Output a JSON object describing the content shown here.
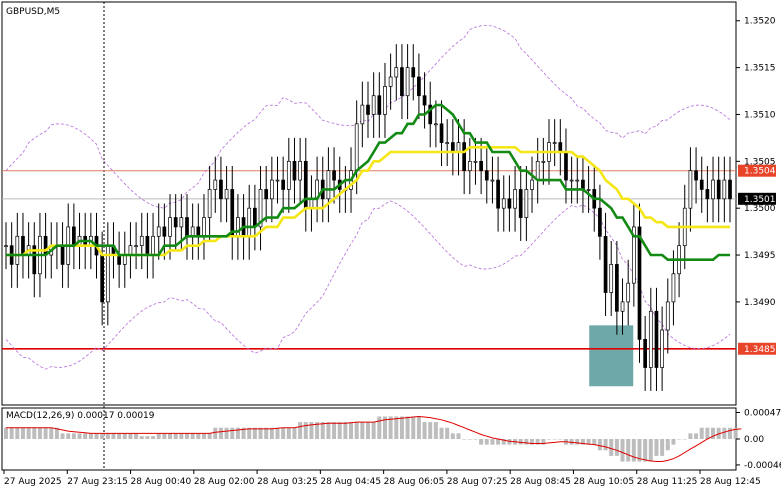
{
  "window": {
    "symbol_label": "GBPUSD,M5"
  },
  "chart_data": [
    {
      "type": "candlestick",
      "title": "GBPUSD,M5",
      "ylim": [
        1.3479,
        1.3522
      ],
      "y_ticks": [
        "1.3520",
        "1.3515",
        "1.3510",
        "1.3505",
        "1.3500",
        "1.3495",
        "1.3490"
      ],
      "x_ticks": [
        "27 Aug 2025",
        "27 Aug 23:15",
        "28 Aug 00:40",
        "28 Aug 02:00",
        "28 Aug 03:25",
        "28 Aug 04:45",
        "28 Aug 06:05",
        "28 Aug 07:25",
        "28 Aug 08:45",
        "28 Aug 10:05",
        "28 Aug 11:25",
        "28 Aug 12:45"
      ],
      "price_tags": [
        {
          "value": "1.3504",
          "color": "#e8442a"
        },
        {
          "value": "1.3501",
          "color": "#000000"
        },
        {
          "value": "1.3485",
          "color": "#e8442a"
        }
      ],
      "horizontal_levels": [
        {
          "value": 1.3504,
          "color": "#e07a5f"
        },
        {
          "value": 1.3485,
          "color": "#e00000"
        }
      ],
      "highlight_zone": {
        "x_from": 0.8,
        "x_to": 0.86,
        "y_from": 1.3481,
        "y_to": 1.34875,
        "color": "#5f9ea0"
      },
      "grid": false,
      "legend": "none",
      "close": [
        1.3496,
        1.3494,
        1.3497,
        1.3495,
        1.3496,
        1.3493,
        1.3497,
        1.3495,
        1.3496,
        1.3496,
        1.3494,
        1.3498,
        1.3496,
        1.3497,
        1.3496,
        1.3497,
        1.3495,
        1.349,
        1.3496,
        1.3495,
        1.3494,
        1.3495,
        1.3496,
        1.3496,
        1.3497,
        1.3495,
        1.3497,
        1.3498,
        1.3497,
        1.3499,
        1.3498,
        1.3499,
        1.3497,
        1.3498,
        1.3497,
        1.3499,
        1.3502,
        1.3503,
        1.3501,
        1.3502,
        1.3497,
        1.3499,
        1.3497,
        1.35,
        1.3498,
        1.3502,
        1.3501,
        1.3503,
        1.3503,
        1.3502,
        1.3505,
        1.3503,
        1.3505,
        1.35,
        1.3501,
        1.3503,
        1.3501,
        1.3504,
        1.3503,
        1.3502,
        1.3502,
        1.3504,
        1.3509,
        1.3511,
        1.351,
        1.3512,
        1.351,
        1.3513,
        1.3514,
        1.3515,
        1.3512,
        1.3515,
        1.3514,
        1.3512,
        1.3511,
        1.3509,
        1.3509,
        1.3507,
        1.3507,
        1.3506,
        1.3507,
        1.3504,
        1.3505,
        1.3505,
        1.3504,
        1.3503,
        1.3503,
        1.35,
        1.3501,
        1.35,
        1.3502,
        1.3499,
        1.3502,
        1.3503,
        1.3505,
        1.3505,
        1.3507,
        1.3507,
        1.3506,
        1.3503,
        1.3503,
        1.3503,
        1.3502,
        1.3502,
        1.35,
        1.3497,
        1.3491,
        1.3494,
        1.3489,
        1.349,
        1.3492,
        1.3498,
        1.3486,
        1.3483,
        1.3489,
        1.3483,
        1.3487,
        1.349,
        1.3493,
        1.3496,
        1.35,
        1.3504,
        1.3503,
        1.3502,
        1.3501,
        1.3503,
        1.3501,
        1.3503,
        1.3501
      ],
      "ma_yellow": [
        1.3495,
        1.3495,
        1.3495,
        1.3495,
        1.34955,
        1.34955,
        1.34955,
        1.34955,
        1.3496,
        1.3496,
        1.3496,
        1.3496,
        1.3496,
        1.3496,
        1.3496,
        1.3496,
        1.3496,
        1.3495,
        1.3495,
        1.3495,
        1.3495,
        1.3495,
        1.3495,
        1.3495,
        1.3495,
        1.3495,
        1.3495,
        1.3495,
        1.3495,
        1.34955,
        1.34955,
        1.34955,
        1.3496,
        1.3496,
        1.3496,
        1.34965,
        1.34965,
        1.34965,
        1.3497,
        1.3497,
        1.3497,
        1.3497,
        1.3497,
        1.3497,
        1.3497,
        1.34975,
        1.3498,
        1.3498,
        1.3498,
        1.3499,
        1.3499,
        1.3499,
        1.34995,
        1.35,
        1.35,
        1.35,
        1.35,
        1.35005,
        1.3501,
        1.35015,
        1.3502,
        1.35025,
        1.3503,
        1.3504,
        1.3504,
        1.3505,
        1.3505,
        1.35055,
        1.3506,
        1.3506,
        1.3506,
        1.3506,
        1.3506,
        1.3506,
        1.3506,
        1.3506,
        1.3506,
        1.3506,
        1.3506,
        1.3506,
        1.3506,
        1.3506,
        1.35065,
        1.35065,
        1.35065,
        1.35065,
        1.35065,
        1.35065,
        1.35065,
        1.35065,
        1.35065,
        1.3506,
        1.3506,
        1.3506,
        1.3506,
        1.3506,
        1.3506,
        1.3506,
        1.3506,
        1.3506,
        1.3506,
        1.35055,
        1.35055,
        1.3505,
        1.35045,
        1.3504,
        1.3503,
        1.35025,
        1.3502,
        1.3501,
        1.3501,
        1.35005,
        1.35,
        1.3499,
        1.3499,
        1.34985,
        1.34985,
        1.3498,
        1.3498,
        1.3498,
        1.3498,
        1.3498,
        1.3498,
        1.3498,
        1.3498,
        1.3498,
        1.3498,
        1.3498,
        1.3498
      ],
      "ma_green": [
        1.3495,
        1.3495,
        1.3495,
        1.3495,
        1.3495,
        1.3495,
        1.3495,
        1.3495,
        1.34955,
        1.3496,
        1.3496,
        1.3496,
        1.3496,
        1.34965,
        1.34965,
        1.34965,
        1.3496,
        1.3496,
        1.3496,
        1.3496,
        1.3495,
        1.3495,
        1.3495,
        1.3495,
        1.3495,
        1.3495,
        1.3495,
        1.3495,
        1.3496,
        1.3496,
        1.3496,
        1.34965,
        1.3497,
        1.3497,
        1.3497,
        1.3497,
        1.3497,
        1.3497,
        1.3497,
        1.3497,
        1.34975,
        1.34975,
        1.3498,
        1.3498,
        1.3498,
        1.34985,
        1.3499,
        1.3499,
        1.3499,
        1.35,
        1.35,
        1.35,
        1.35005,
        1.3501,
        1.3501,
        1.3501,
        1.3502,
        1.3502,
        1.3502,
        1.35025,
        1.3503,
        1.3503,
        1.3504,
        1.35045,
        1.3505,
        1.3506,
        1.3507,
        1.3507,
        1.35075,
        1.3508,
        1.3508,
        1.3509,
        1.3509,
        1.351,
        1.351,
        1.35105,
        1.3511,
        1.3511,
        1.35105,
        1.351,
        1.3509,
        1.3508,
        1.3508,
        1.3507,
        1.3507,
        1.3507,
        1.3506,
        1.3506,
        1.3506,
        1.3506,
        1.3505,
        1.3504,
        1.3504,
        1.35035,
        1.3503,
        1.3503,
        1.3503,
        1.3503,
        1.3503,
        1.3502,
        1.3502,
        1.3502,
        1.3502,
        1.35015,
        1.3501,
        1.3501,
        1.35005,
        1.35,
        1.3499,
        1.3499,
        1.3498,
        1.3497,
        1.3497,
        1.3496,
        1.3495,
        1.3495,
        1.3495,
        1.34945,
        1.34945,
        1.34945,
        1.34945,
        1.34945,
        1.34945,
        1.34945,
        1.34945,
        1.34945,
        1.3495,
        1.3495,
        1.3495
      ],
      "macd": {
        "label": "MACD(12,26,9) 0.00017 0.00019",
        "y_ticks": [
          "0.00047",
          "0.00",
          "-0.00046"
        ],
        "ylim": [
          -0.00055,
          0.00055
        ],
        "hist": [
          0.0002,
          0.0002,
          0.0002,
          0.0002,
          0.0002,
          0.0002,
          0.0002,
          0.0002,
          0.0002,
          0.0002,
          0.0001,
          0.0001,
          0.0001,
          0.0001,
          0.0001,
          0.0001,
          0.0001,
          0.0001,
          0.0001,
          0.0001,
          0.0001,
          0.0001,
          0.0001,
          0.0001,
          5e-05,
          5e-05,
          5e-05,
          0.0001,
          0.0001,
          0.0001,
          0.0001,
          0.0001,
          0.0001,
          0.0001,
          0.0001,
          0.0001,
          0.0001,
          0.0002,
          0.0002,
          0.0002,
          0.0002,
          0.0002,
          0.0002,
          0.0002,
          0.0002,
          0.0002,
          0.0002,
          0.0002,
          0.0002,
          0.0002,
          0.0002,
          0.0002,
          0.0003,
          0.0003,
          0.0003,
          0.0003,
          0.0003,
          0.0003,
          0.0003,
          0.0003,
          0.0003,
          0.0003,
          0.0003,
          0.0003,
          0.0003,
          0.0003,
          0.0004,
          0.0004,
          0.0004,
          0.0004,
          0.0004,
          0.0004,
          0.0004,
          0.0004,
          0.0003,
          0.0003,
          0.0003,
          0.0002,
          0.0002,
          0.0001,
          0.0001,
          0.0,
          0.0,
          0.0,
          -0.0001,
          -0.0001,
          -0.0001,
          -0.0001,
          -0.0001,
          -0.0001,
          -0.0001,
          -0.0001,
          -0.0001,
          -0.0001,
          -0.0001,
          -0.0001,
          0.0,
          0.0,
          0.0,
          -0.0001,
          -0.0001,
          -0.0001,
          -0.0001,
          -0.0001,
          -0.0001,
          -0.0002,
          -0.0002,
          -0.0003,
          -0.0003,
          -0.0004,
          -0.0004,
          -0.0004,
          -0.0004,
          -0.0004,
          -0.0004,
          -0.0003,
          -0.0003,
          -0.0002,
          -0.0001,
          0.0,
          0.0,
          0.0001,
          0.0001,
          0.0002,
          0.0002,
          0.0002,
          0.0002,
          0.0002,
          0.0002,
          0.0002
        ],
        "signal": [
          0.0002,
          0.0002,
          0.0002,
          0.0002,
          0.0002,
          0.0002,
          0.0002,
          0.0002,
          0.0002,
          0.00018,
          0.00016,
          0.00014,
          0.00013,
          0.00012,
          0.00011,
          0.0001,
          0.0001,
          0.0001,
          0.0001,
          0.0001,
          0.0001,
          0.0001,
          0.0001,
          0.0001,
          0.0001,
          0.0001,
          0.0001,
          0.0001,
          0.0001,
          0.0001,
          0.0001,
          0.0001,
          0.0001,
          0.0001,
          0.0001,
          0.0001,
          0.0001,
          0.00012,
          0.00013,
          0.00014,
          0.00015,
          0.00016,
          0.00017,
          0.00018,
          0.00018,
          0.00018,
          0.00018,
          0.00018,
          0.00019,
          0.0002,
          0.0002,
          0.0002,
          0.00022,
          0.00024,
          0.00025,
          0.00026,
          0.00027,
          0.00028,
          0.00028,
          0.00028,
          0.00028,
          0.00029,
          0.0003,
          0.0003,
          0.0003,
          0.0003,
          0.00032,
          0.00034,
          0.00035,
          0.00036,
          0.00037,
          0.00038,
          0.00039,
          0.0004,
          0.00039,
          0.00038,
          0.00036,
          0.00034,
          0.00031,
          0.00028,
          0.00024,
          0.0002,
          0.00016,
          0.00012,
          8e-05,
          5e-05,
          2e-05,
          0.0,
          -2e-05,
          -4e-05,
          -5e-05,
          -6e-05,
          -7e-05,
          -8e-05,
          -8e-05,
          -8e-05,
          -7e-05,
          -6e-05,
          -5e-05,
          -5e-05,
          -6e-05,
          -7e-05,
          -8e-05,
          -9e-05,
          -0.0001,
          -0.00012,
          -0.00014,
          -0.00017,
          -0.0002,
          -0.00024,
          -0.00028,
          -0.00032,
          -0.00035,
          -0.00037,
          -0.00039,
          -0.0004,
          -0.0004,
          -0.00038,
          -0.00035,
          -0.0003,
          -0.00024,
          -0.00018,
          -0.00012,
          -6e-05,
          0.0,
          5e-05,
          9e-05,
          0.00012,
          0.00015,
          0.00017,
          0.00018
        ]
      }
    }
  ]
}
